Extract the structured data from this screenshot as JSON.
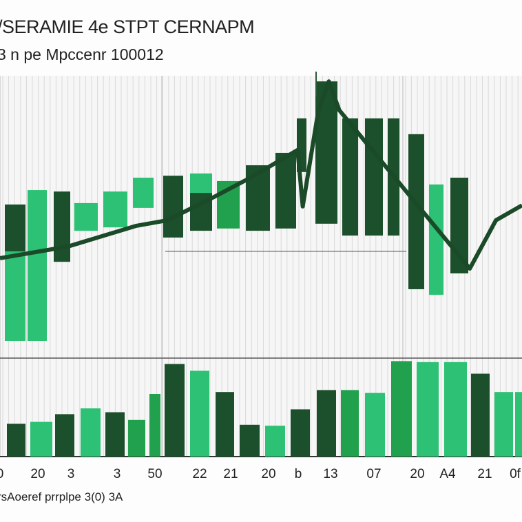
{
  "chart_data": {
    "type": "bar",
    "title": "/SERAMIE 4e STPT CERNAPM",
    "subtitle": "3 n pe Mpccenr 100012",
    "xlabel": "rsAoeref prrplpe 3(0) 3A",
    "ylabel": "",
    "colors": {
      "dark": "#1c4f2b",
      "mid": "#21a04e",
      "light": "#2cc174",
      "line": "#1a4a28",
      "grid": "#d9d9d9"
    },
    "upper_panel": {
      "ylim": [
        0,
        100
      ],
      "reference_line": 37.8,
      "bars": [
        {
          "low": 35.4,
          "high": 54.4,
          "shade": "dark"
        },
        {
          "low": 6.1,
          "high": 37.8,
          "shade": "light"
        },
        {
          "low": 6.1,
          "high": 59.5,
          "shade": "light"
        },
        {
          "low": 34.1,
          "high": 59.0,
          "shade": "dark"
        },
        {
          "low": 45.1,
          "high": 54.9,
          "shade": "light"
        },
        {
          "low": 46.3,
          "high": 59.0,
          "shade": "light"
        },
        {
          "low": 53.2,
          "high": 63.9,
          "shade": "light"
        },
        {
          "low": 42.7,
          "high": 64.6,
          "shade": "dark"
        },
        {
          "low": 57.3,
          "high": 65.4,
          "shade": "light"
        },
        {
          "low": 45.1,
          "high": 58.5,
          "shade": "dark"
        },
        {
          "low": 45.9,
          "high": 62.7,
          "shade": "mid"
        },
        {
          "low": 45.1,
          "high": 68.3,
          "shade": "dark"
        },
        {
          "low": 45.9,
          "high": 72.7,
          "shade": "dark"
        },
        {
          "low": 65.9,
          "high": 84.9,
          "shade": "dark"
        },
        {
          "low": 47.6,
          "high": 98.0,
          "shade": "dark"
        },
        {
          "low": 43.4,
          "high": 84.9,
          "shade": "dark"
        },
        {
          "low": 43.4,
          "high": 84.9,
          "shade": "dark"
        },
        {
          "low": 43.4,
          "high": 84.9,
          "shade": "dark"
        },
        {
          "low": 24.4,
          "high": 79.3,
          "shade": "dark"
        },
        {
          "low": 22.4,
          "high": 61.5,
          "shade": "light"
        },
        {
          "low": 30.0,
          "high": 63.9,
          "shade": "dark"
        }
      ],
      "line": {
        "x": [
          0,
          13,
          26,
          32,
          40,
          48,
          57,
          58,
          61,
          63,
          65,
          90,
          95,
          100
        ],
        "y": [
          35.4,
          39.5,
          46.8,
          48.8,
          56.1,
          63.9,
          73.7,
          53.7,
          87.8,
          98.0,
          87.8,
          31.7,
          48.8,
          54.1
        ]
      }
    },
    "lower_panel": {
      "ylim": [
        0,
        100
      ],
      "values": [
        34,
        36,
        44,
        50,
        46,
        38,
        65,
        96,
        89,
        67,
        33,
        32,
        49,
        69,
        69,
        66,
        99,
        98,
        98,
        86,
        67,
        67
      ],
      "shades": [
        "dark",
        "light",
        "dark",
        "light",
        "dark",
        "mid",
        "mid",
        "dark",
        "light",
        "dark",
        "dark",
        "light",
        "dark",
        "dark",
        "mid",
        "light",
        "mid",
        "light",
        "light",
        "dark",
        "light",
        "light"
      ]
    },
    "x_tick_labels": [
      "0",
      "20",
      "3",
      "3",
      "50",
      "22",
      "21",
      "20",
      "b",
      "13",
      "07",
      "20",
      "A4",
      "21",
      "0f"
    ]
  }
}
